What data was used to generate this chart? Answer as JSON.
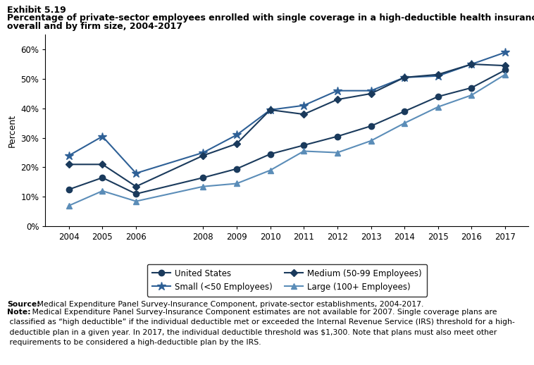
{
  "years": [
    2004,
    2005,
    2006,
    2008,
    2009,
    2010,
    2011,
    2012,
    2013,
    2014,
    2015,
    2016,
    2017
  ],
  "united_states": [
    12.5,
    16.5,
    11.0,
    16.5,
    19.5,
    24.5,
    27.5,
    30.5,
    34.0,
    39.0,
    44.0,
    47.0,
    53.0
  ],
  "small": [
    24.0,
    30.5,
    18.0,
    25.0,
    31.0,
    39.5,
    41.0,
    46.0,
    46.0,
    50.5,
    51.0,
    55.0,
    59.0
  ],
  "medium": [
    21.0,
    21.0,
    13.5,
    24.0,
    28.0,
    39.5,
    38.0,
    43.0,
    45.0,
    50.5,
    51.5,
    55.0,
    54.5
  ],
  "large": [
    7.0,
    12.0,
    8.5,
    13.5,
    14.5,
    19.0,
    25.5,
    25.0,
    29.0,
    35.0,
    40.5,
    44.5,
    51.5
  ],
  "title_line1": "Exhibit 5.19",
  "title_line2": "Percentage of private-sector employees enrolled with single coverage in a high-deductible health insurance plan,",
  "title_line3": "overall and by firm size, 2004-2017",
  "ylabel": "Percent",
  "color_us": "#1a3a5c",
  "color_small": "#2e6096",
  "color_medium": "#1a3a5c",
  "color_large": "#5b8db8",
  "legend_labels": [
    "United States",
    "Small (<50 Employees)",
    "Medium (50-99 Employees)",
    "Large (100+ Employees)"
  ],
  "source_bold": "Source:",
  "source_rest": " Medical Expenditure Panel Survey-Insurance Component, private-sector establishments, 2004-2017.",
  "note_bold": "Note:",
  "note_rest": " Medical Expenditure Panel Survey-Insurance Component estimates are not available for 2007. Single coverage plans are classified as “high deductible” if the individual deductible met or exceeded the Internal Revenue Service (IRS) threshold for a high-deductible plan in a given year. In 2017, the individual deductible threshold was $1,300. Note that plans must also meet other requirements to be considered a high-deductible plan by the IRS.",
  "ylim": [
    0,
    65
  ],
  "yticks": [
    0,
    10,
    20,
    30,
    40,
    50,
    60
  ]
}
